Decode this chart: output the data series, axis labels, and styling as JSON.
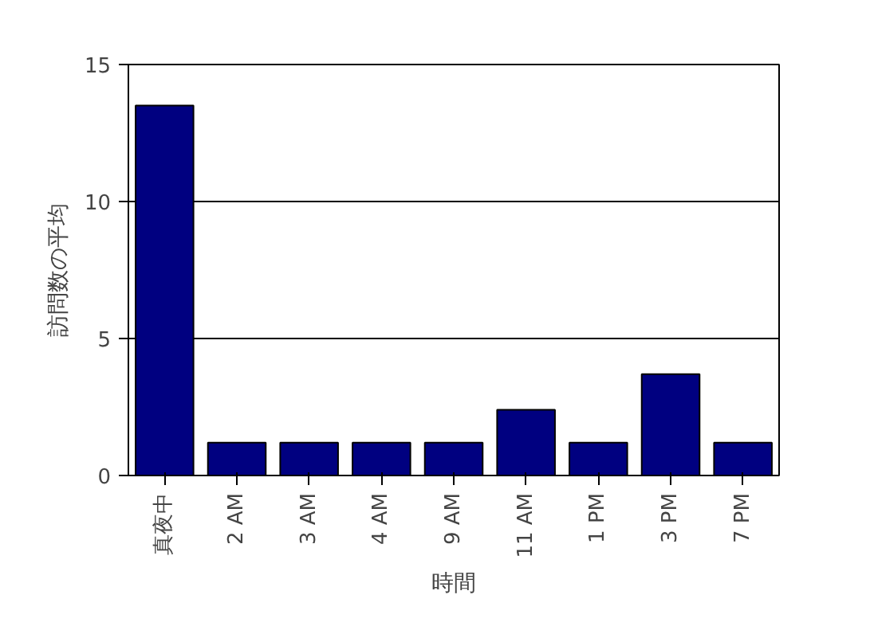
{
  "chart_data": {
    "type": "bar",
    "xlabel": "時間",
    "ylabel": "訪問数の平均",
    "categories": [
      "真夜中",
      "2 AM",
      "3 AM",
      "4 AM",
      "9 AM",
      "11 AM",
      "1 PM",
      "3 PM",
      "7 PM"
    ],
    "values": [
      13.5,
      1.2,
      1.2,
      1.2,
      1.2,
      2.4,
      1.2,
      3.7,
      1.2
    ],
    "color": "#000080",
    "ylim": [
      0,
      15
    ],
    "yticks": [
      0,
      5,
      10,
      15
    ],
    "grid": "y"
  }
}
